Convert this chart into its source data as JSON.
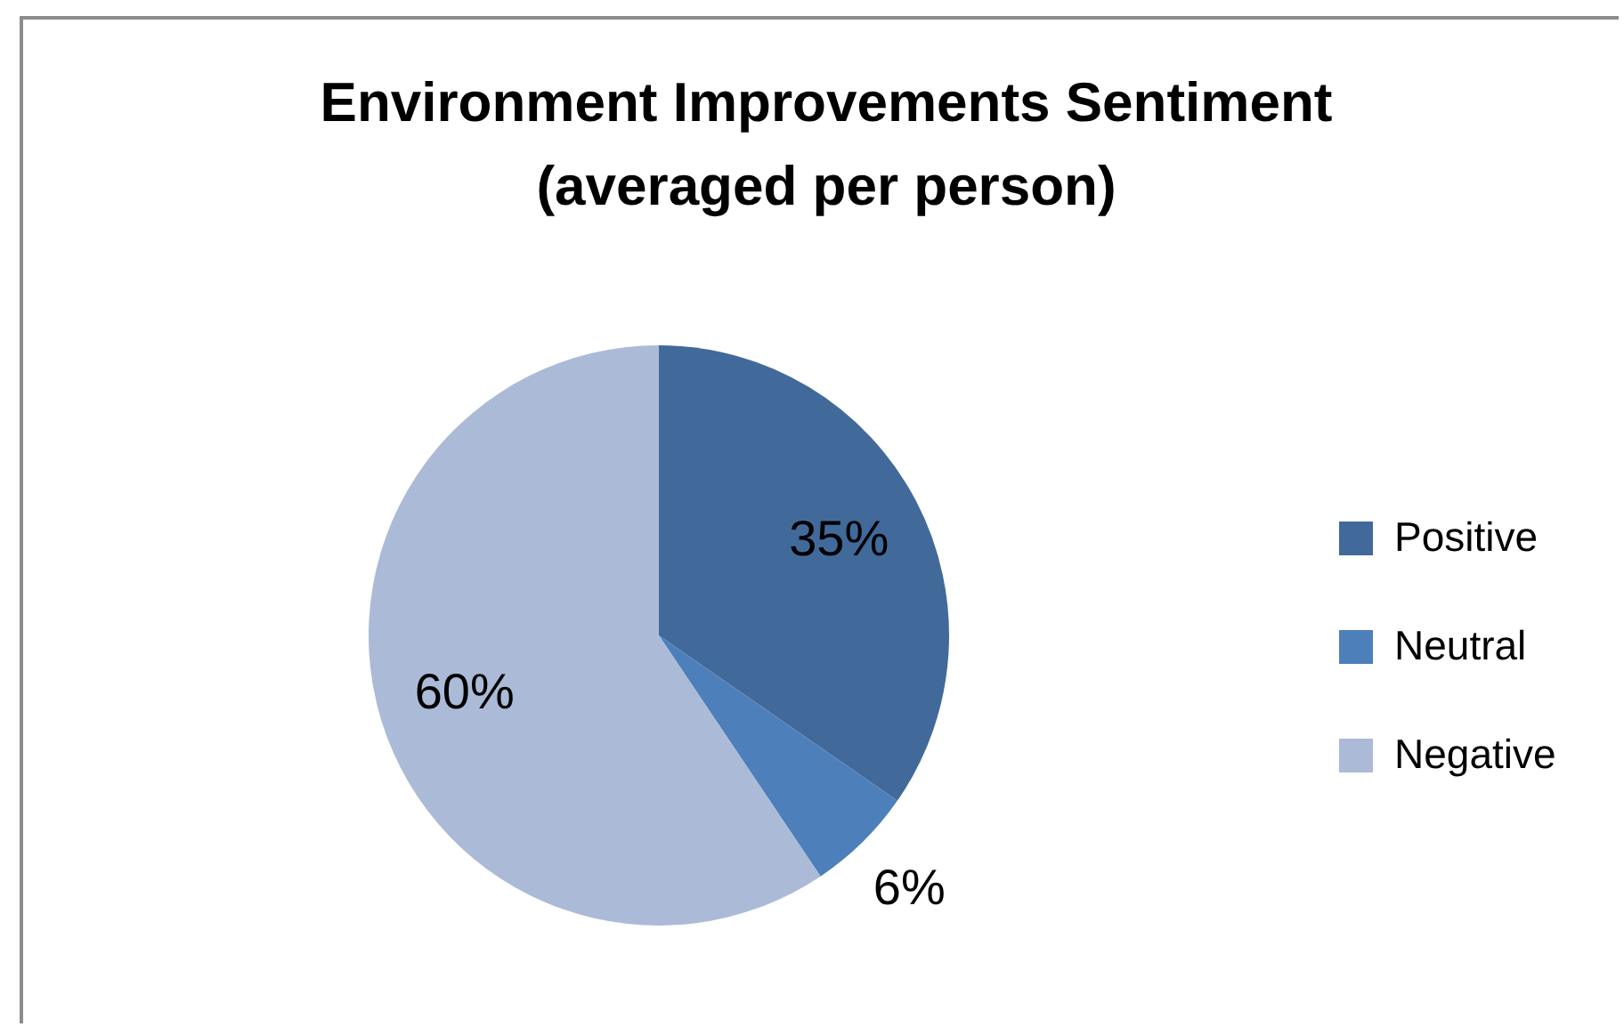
{
  "chart_data": {
    "type": "pie",
    "title": "Environment Improvements Sentiment\n(averaged per person)",
    "categories": [
      "Positive",
      "Neutral",
      "Negative"
    ],
    "values": [
      35,
      6,
      60
    ],
    "value_labels": [
      "35%",
      "6%",
      "60%"
    ],
    "colors": [
      "#416a9b",
      "#4d7fba",
      "#abbad7"
    ],
    "legend": "right"
  }
}
